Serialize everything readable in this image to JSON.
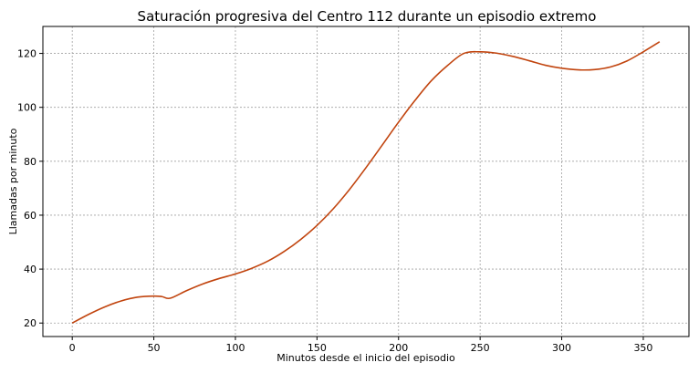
{
  "chart_data": {
    "type": "line",
    "title": "Saturación progresiva del Centro 112 durante un episodio extremo",
    "xlabel": "Minutos desde el inicio del episodio",
    "ylabel": "Llamadas por minuto",
    "xlim": [
      -18,
      378
    ],
    "ylim": [
      15,
      130
    ],
    "xticks": [
      0,
      50,
      100,
      150,
      200,
      250,
      300,
      350
    ],
    "yticks": [
      20,
      40,
      60,
      80,
      100,
      120
    ],
    "grid": true,
    "series": [
      {
        "color": "#c1440e",
        "points": [
          [
            0,
            20
          ],
          [
            10,
            23.2
          ],
          [
            20,
            26
          ],
          [
            30,
            28.2
          ],
          [
            40,
            29.6
          ],
          [
            50,
            30
          ],
          [
            55,
            29.8
          ],
          [
            60,
            29.2
          ],
          [
            70,
            32
          ],
          [
            80,
            34.5
          ],
          [
            90,
            36.5
          ],
          [
            100,
            38.2
          ],
          [
            110,
            40.3
          ],
          [
            120,
            43
          ],
          [
            130,
            46.6
          ],
          [
            140,
            51
          ],
          [
            150,
            56.2
          ],
          [
            160,
            62.4
          ],
          [
            170,
            69.6
          ],
          [
            180,
            77.6
          ],
          [
            190,
            86
          ],
          [
            200,
            94.5
          ],
          [
            210,
            102.5
          ],
          [
            220,
            109.8
          ],
          [
            230,
            115.5
          ],
          [
            240,
            120
          ],
          [
            250,
            120.6
          ],
          [
            260,
            120.1
          ],
          [
            270,
            118.9
          ],
          [
            280,
            117.3
          ],
          [
            290,
            115.6
          ],
          [
            300,
            114.5
          ],
          [
            310,
            113.9
          ],
          [
            320,
            114
          ],
          [
            330,
            115
          ],
          [
            340,
            117.2
          ],
          [
            350,
            120.6
          ],
          [
            360,
            124.3
          ]
        ]
      }
    ]
  }
}
